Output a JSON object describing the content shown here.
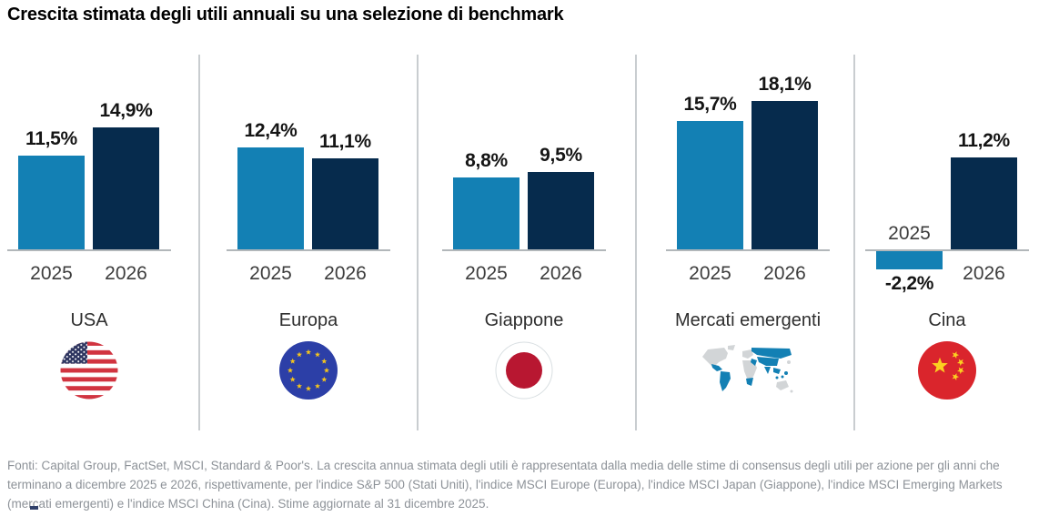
{
  "title": "Crescita stimata degli utili annuali su una selezione di benchmark",
  "chart_data": {
    "type": "bar",
    "title": "Crescita stimata degli utili annuali su una selezione di benchmark",
    "unit": "%",
    "categories": [
      "2025",
      "2026"
    ],
    "colors": {
      "year_2025": "#1380b4",
      "year_2026": "#062b4d"
    },
    "axis": {
      "baseline_value": 0,
      "gridlines": false,
      "value_labels_shown": true
    },
    "groups": [
      {
        "label": "USA",
        "flag": "usa-flag",
        "values": [
          11.5,
          14.9
        ],
        "value_labels": [
          "11,5%",
          "14,9%"
        ]
      },
      {
        "label": "Europa",
        "flag": "eu-flag",
        "values": [
          12.4,
          11.1
        ],
        "value_labels": [
          "12,4%",
          "11,1%"
        ]
      },
      {
        "label": "Giappone",
        "flag": "japan-flag",
        "values": [
          8.8,
          9.5
        ],
        "value_labels": [
          "8,8%",
          "9,5%"
        ]
      },
      {
        "label": "Mercati emergenti",
        "flag": "world-map",
        "values": [
          15.7,
          18.1
        ],
        "value_labels": [
          "15,7%",
          "18,1%"
        ]
      },
      {
        "label": "Cina",
        "flag": "china-flag",
        "values": [
          -2.2,
          11.2
        ],
        "value_labels": [
          "-2,2%",
          "11,2%"
        ]
      }
    ]
  },
  "footer": "Fonti: Capital Group, FactSet, MSCI, Standard & Poor's. La crescita annua stimata degli utili è rappresentata dalla media delle stime di consensus degli utili per azione per gli anni che terminano a dicembre 2025 e 2026, rispettivamente, per l'indice S&P 500 (Stati Uniti), l'indice MSCI Europe (Europa), l'indice MSCI Japan (Giappone), l'indice MSCI Emerging Markets (mercati emergenti) e l'indice MSCI China (Cina). Stime aggiornate al 31 dicembre 2025."
}
